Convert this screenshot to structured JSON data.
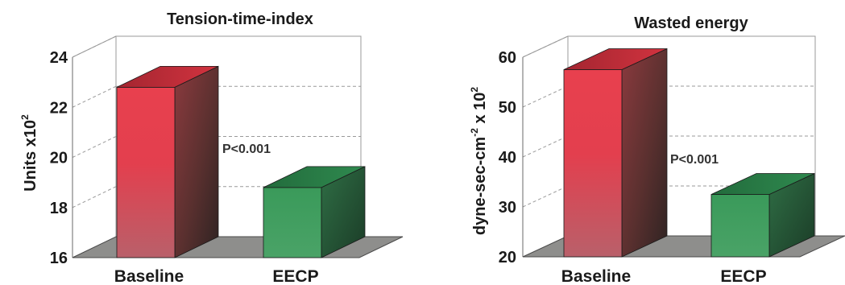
{
  "chart_data": [
    {
      "type": "bar",
      "title": "Tension-time-index",
      "ylabel": "Units x10",
      "ylabel_sup": "2",
      "categories": [
        "Baseline",
        "EECP"
      ],
      "values": [
        22.8,
        18.8
      ],
      "ylim": [
        16,
        24
      ],
      "yticks": [
        "16",
        "18",
        "20",
        "22",
        "24"
      ],
      "annotation": "P<0.001",
      "grid": true,
      "colors": {
        "baseline": "#e0414f",
        "eecp": "#3f9e5c"
      }
    },
    {
      "type": "bar",
      "title": "Wasted energy",
      "ylabel_parts": [
        "dyne-sec-cm",
        "-2",
        " x 10",
        "2"
      ],
      "categories": [
        "Baseline",
        "EECP"
      ],
      "values": [
        57.5,
        32.5
      ],
      "ylim": [
        20,
        60
      ],
      "yticks": [
        "20",
        "30",
        "40",
        "50",
        "60"
      ],
      "annotation": "P<0.001",
      "grid": true,
      "colors": {
        "baseline": "#e0414f",
        "eecp": "#3f9e5c"
      }
    }
  ]
}
